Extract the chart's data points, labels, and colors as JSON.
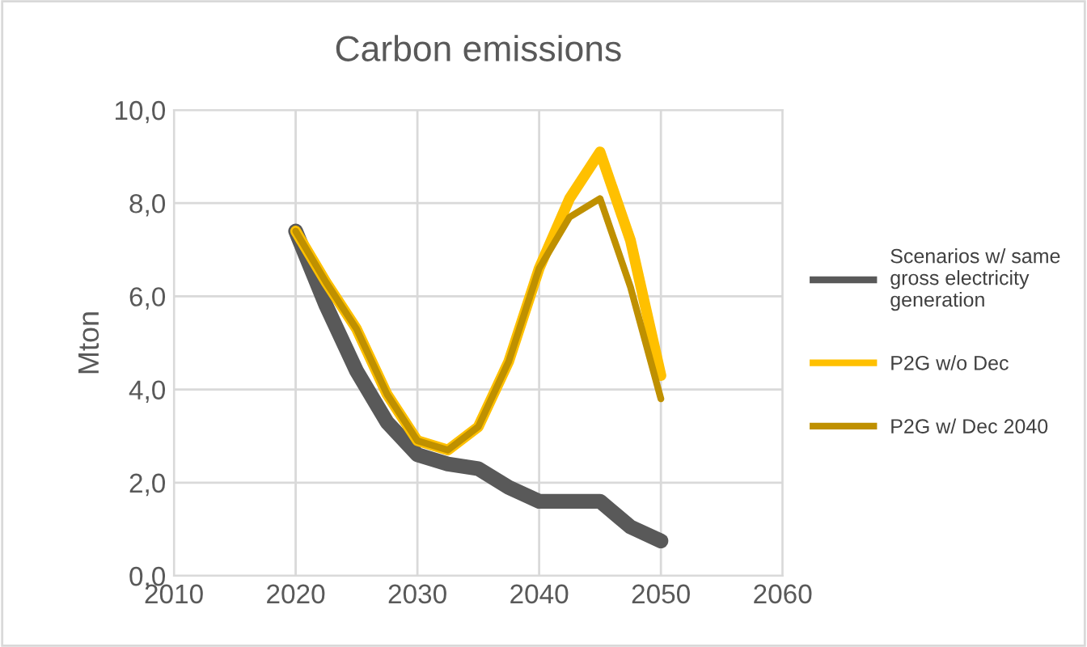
{
  "chart_data": {
    "type": "line",
    "title": "Carbon emissions",
    "ylabel": "Mton",
    "x": [
      2020,
      2022.5,
      2025,
      2027.5,
      2030,
      2032.5,
      2035,
      2037.5,
      2040,
      2042.5,
      2045,
      2047.5,
      2050
    ],
    "series": [
      {
        "name": "Scenarios w/ same gross electricity generation",
        "color": "#595959",
        "values": [
          7.4,
          5.8,
          4.4,
          3.3,
          2.6,
          2.4,
          2.3,
          1.9,
          1.6,
          1.6,
          1.6,
          1.05,
          0.75
        ]
      },
      {
        "name": "P2G w/o Dec",
        "color": "#ffc000",
        "values": [
          7.4,
          6.3,
          5.3,
          3.9,
          2.9,
          2.7,
          3.2,
          4.6,
          6.6,
          8.1,
          9.1,
          7.2,
          4.3
        ]
      },
      {
        "name": "P2G w/ Dec 2040",
        "color": "#bf9000",
        "values": [
          7.4,
          6.3,
          5.3,
          3.9,
          2.9,
          2.7,
          3.2,
          4.6,
          6.6,
          7.7,
          8.1,
          6.2,
          3.8
        ]
      }
    ],
    "xlim": [
      2010,
      2060
    ],
    "xticks": [
      2010,
      2020,
      2030,
      2040,
      2050,
      2060
    ],
    "ylim": [
      0,
      10
    ],
    "yticks": [
      {
        "value": 0,
        "label": "0,0"
      },
      {
        "value": 2,
        "label": "2,0"
      },
      {
        "value": 4,
        "label": "4,0"
      },
      {
        "value": 6,
        "label": "6,0"
      },
      {
        "value": 8,
        "label": "8,0"
      },
      {
        "value": 10,
        "label": "10,0"
      }
    ],
    "grid": true,
    "legend": "right",
    "marker": "none",
    "line_style": "solid"
  }
}
